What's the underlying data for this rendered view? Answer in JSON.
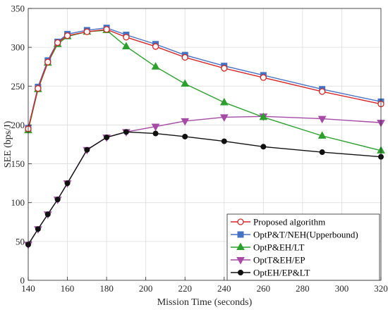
{
  "chart_data": {
    "type": "line",
    "xlabel": "Mission Time (seconds)",
    "ylabel": "SEE (bps/J)",
    "xlim": [
      140,
      320
    ],
    "ylim": [
      0,
      350
    ],
    "xticks": [
      140,
      160,
      180,
      200,
      220,
      240,
      260,
      280,
      300,
      320
    ],
    "yticks": [
      0,
      50,
      100,
      150,
      200,
      250,
      300,
      350
    ],
    "grid": true,
    "legend_position": "bottom-right",
    "series": [
      {
        "name": "Proposed algorithm",
        "color": "#d62728",
        "marker": "circle-open",
        "x": [
          140,
          145,
          150,
          155,
          160,
          170,
          180,
          190,
          205,
          220,
          240,
          260,
          290,
          320
        ],
        "y": [
          195,
          247,
          281,
          306,
          315,
          320,
          323,
          313,
          301,
          287,
          273,
          261,
          243,
          227
        ]
      },
      {
        "name": "OptP&T/NEH(Upperbound)",
        "color": "#4472c4",
        "marker": "square",
        "x": [
          140,
          145,
          150,
          155,
          160,
          170,
          180,
          190,
          205,
          220,
          240,
          260,
          290,
          320
        ],
        "y": [
          196,
          249,
          283,
          307,
          317,
          322,
          325,
          316,
          304,
          290,
          276,
          264,
          246,
          230
        ]
      },
      {
        "name": "OptP&EH/LT",
        "color": "#2ca02c",
        "marker": "triangle-up",
        "x": [
          140,
          145,
          150,
          155,
          160,
          170,
          180,
          190,
          205,
          220,
          240,
          260,
          290,
          320
        ],
        "y": [
          193,
          246,
          280,
          304,
          314,
          320,
          322,
          301,
          275,
          253,
          229,
          210,
          186,
          167
        ]
      },
      {
        "name": "OptT&EH/EP",
        "color": "#a54aa5",
        "marker": "triangle-down",
        "x": [
          140,
          145,
          150,
          155,
          160,
          170,
          180,
          190,
          205,
          220,
          240,
          260,
          290,
          320
        ],
        "y": [
          46,
          66,
          85,
          104,
          125,
          168,
          184,
          191,
          198,
          205,
          210,
          211,
          208,
          203
        ]
      },
      {
        "name": "OptEH/EP&LT",
        "color": "#111111",
        "marker": "circle",
        "x": [
          140,
          145,
          150,
          155,
          160,
          170,
          180,
          190,
          205,
          220,
          240,
          260,
          290,
          320
        ],
        "y": [
          46,
          66,
          85,
          104,
          125,
          168,
          184,
          191,
          189,
          185,
          179,
          172,
          165,
          159
        ]
      }
    ]
  }
}
